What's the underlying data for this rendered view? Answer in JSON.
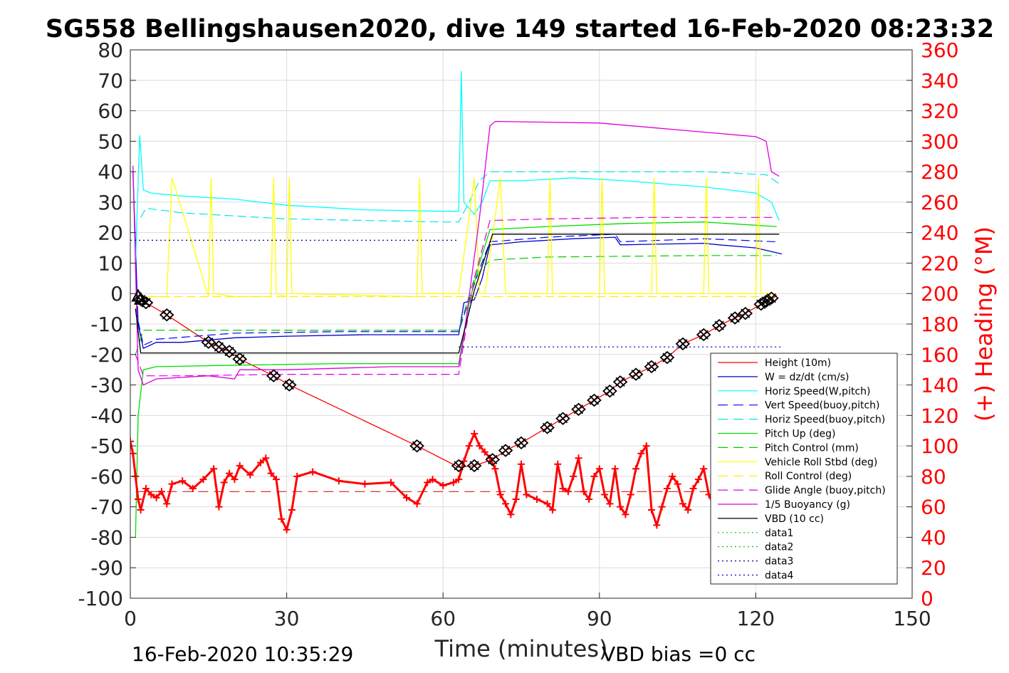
{
  "title": "SG558 Bellingshausen2020, dive 149 started 16-Feb-2020 08:23:32",
  "footer": {
    "timestamp": "16-Feb-2020 10:35:29",
    "vbd_bias": "VBD bias =0 cc"
  },
  "chart_data": {
    "type": "line",
    "title": "SG558 Bellingshausen2020, dive 149 started 16-Feb-2020 08:23:32",
    "xlabel": "Time (minutes)",
    "ylabel_left": "",
    "ylabel_right": "(+) Heading (°M)",
    "xlim": [
      0,
      150
    ],
    "ylim_left": [
      -100,
      80
    ],
    "ylim_right": [
      0,
      360
    ],
    "x_ticks": [
      "0",
      "30",
      "60",
      "90",
      "120",
      "150"
    ],
    "left_ticks": [
      "80",
      "70",
      "60",
      "50",
      "40",
      "30",
      "20",
      "10",
      "0",
      "-10",
      "-20",
      "-30",
      "-40",
      "-50",
      "-60",
      "-70",
      "-80",
      "-90",
      "-100"
    ],
    "right_ticks": [
      "360",
      "340",
      "320",
      "300",
      "280",
      "260",
      "240",
      "220",
      "200",
      "180",
      "160",
      "140",
      "120",
      "100",
      "80",
      "60",
      "40",
      "20",
      "0"
    ],
    "grid": true,
    "legend_location": "lower-right",
    "series": [
      {
        "name": "Height (10m)",
        "color": "#ff0000",
        "style": "solid",
        "x": [
          1.5,
          3,
          7,
          15,
          17,
          19,
          21,
          27.5,
          30.5,
          55,
          63,
          66,
          69.5,
          72,
          75,
          80,
          83,
          86,
          89,
          92,
          94,
          97,
          100,
          103,
          106,
          110,
          113,
          116,
          118,
          121,
          123,
          124
        ],
        "y": [
          -1.5,
          -3,
          -7,
          -16,
          -17.5,
          -19,
          -21.5,
          -27,
          -30,
          -50,
          -57,
          -56.5,
          -54.5,
          -51.5,
          -49,
          -44,
          -41,
          -38,
          -35,
          -32,
          -29,
          -26.5,
          -24,
          -21,
          -16.5,
          -13.5,
          -10.5,
          -8,
          -6.5,
          -3.5,
          -2,
          -0.5
        ]
      },
      {
        "name": "W = dz/dt (cm/s)",
        "color": "#0000cd",
        "style": "solid",
        "x": [
          0.5,
          1.5,
          2.5,
          5,
          10,
          20,
          30,
          45,
          60,
          63,
          64,
          66,
          67.5,
          69,
          75,
          85,
          93,
          94,
          110,
          113,
          120,
          125
        ],
        "y": [
          40,
          -10,
          -18,
          -16,
          -16,
          -14.5,
          -14,
          -13.5,
          -13.5,
          -13.5,
          -3,
          -2,
          5,
          16,
          17,
          18,
          18.5,
          16,
          16.5,
          16,
          15,
          13
        ]
      },
      {
        "name": "Horiz Speed(W,pitch)",
        "color": "#00ffff",
        "style": "solid",
        "x": [
          1,
          1.8,
          2.5,
          4,
          10,
          20,
          30,
          45,
          60,
          63,
          63.5,
          64,
          66,
          67.5,
          69,
          75,
          85,
          95,
          110,
          120,
          123,
          124.5
        ],
        "y": [
          10,
          52,
          34,
          33,
          32,
          31,
          29,
          27.5,
          27,
          27,
          73,
          30,
          26,
          30,
          37,
          37,
          38,
          37,
          35,
          33,
          30,
          24
        ]
      },
      {
        "name": "Vert Speed(buoy,pitch)",
        "color": "#0000ff",
        "style": "dashed",
        "x": [
          1,
          2.5,
          5,
          20,
          40,
          60,
          63,
          65,
          67,
          69,
          80,
          93,
          94,
          110,
          124
        ],
        "y": [
          -5,
          -17,
          -15,
          -13,
          -12.5,
          -12.5,
          -12.5,
          -2,
          8,
          17,
          18.5,
          19.5,
          17,
          18,
          17
        ]
      },
      {
        "name": "Horiz Speed(buoy,pitch)",
        "color": "#00e5ee",
        "style": "dashed",
        "x": [
          2,
          3,
          10,
          30,
          60,
          63,
          65,
          67,
          69,
          80,
          95,
          110,
          122,
          124.5
        ],
        "y": [
          25,
          28,
          26.5,
          24.5,
          23.5,
          23.5,
          30,
          37,
          40,
          40,
          40,
          40,
          39,
          36
        ]
      },
      {
        "name": "Pitch Up (deg)",
        "color": "#00dd00",
        "style": "solid",
        "x": [
          1,
          1.5,
          2.5,
          5,
          20,
          40,
          60,
          63,
          65,
          67,
          69,
          80,
          95,
          110,
          124
        ],
        "y": [
          -80,
          -40,
          -25,
          -24,
          -23.5,
          -23,
          -23,
          -23,
          -3,
          10,
          21,
          22,
          23,
          23.5,
          22
        ]
      },
      {
        "name": "Pitch Control (mm)",
        "color": "#00cc00",
        "style": "dashed",
        "x": [
          1,
          2.5,
          10,
          30,
          60,
          63,
          66,
          69,
          80,
          110,
          124
        ],
        "y": [
          -20,
          -12,
          -12,
          -12,
          -12,
          -12,
          5,
          11,
          12,
          12.5,
          12.5
        ]
      },
      {
        "name": "Vehicle Roll Stbd (deg)",
        "color": "#ffff00",
        "style": "solid",
        "x": [
          1,
          2,
          4,
          7,
          8,
          15,
          15.5,
          16,
          20,
          27,
          27.5,
          28,
          30,
          30.5,
          31,
          55,
          55.5,
          56,
          63,
          66,
          67,
          68,
          71,
          72,
          80,
          80.5,
          81,
          90,
          90.5,
          91,
          100,
          100.5,
          101,
          110,
          110.5,
          111,
          120,
          120.5,
          121,
          124
        ],
        "y": [
          -5,
          -2,
          -1,
          -1,
          38,
          -1,
          38,
          0,
          -1,
          -1,
          38,
          0,
          -1,
          38,
          0,
          -1,
          38,
          0,
          0,
          38,
          0,
          0,
          38,
          0,
          0,
          38,
          0,
          0,
          38,
          0,
          0,
          38,
          0,
          0,
          38,
          0,
          0,
          38,
          0,
          0
        ]
      },
      {
        "name": "Roll Control (deg)",
        "color": "#ffee00",
        "style": "dashed",
        "x": [
          1,
          5,
          30,
          60,
          63,
          68,
          80,
          100,
          124
        ],
        "y": [
          -1,
          -1,
          -1,
          -1,
          -1,
          -1,
          -1,
          -1,
          -1
        ]
      },
      {
        "name": "Glide Angle (buoy,pitch)",
        "color": "#dd00dd",
        "style": "dashed",
        "x": [
          1,
          2.5,
          10,
          30,
          60,
          63,
          66,
          69,
          80,
          100,
          124
        ],
        "y": [
          -20,
          -27,
          -27,
          -26.5,
          -26.5,
          -26.5,
          5,
          24,
          24.5,
          25,
          25
        ]
      },
      {
        "name": "1/5 Buoyancy (g)",
        "color": "#dd00dd",
        "style": "solid",
        "x": [
          0.5,
          1.5,
          2.5,
          5,
          15,
          20,
          21,
          30,
          50,
          60,
          63,
          64,
          67,
          69,
          70,
          90,
          110,
          120,
          122,
          123,
          124.5
        ],
        "y": [
          42,
          -25,
          -30,
          -28,
          -27,
          -28,
          -25,
          -25,
          -24,
          -24,
          -24,
          -14,
          25,
          55,
          56.5,
          56,
          53,
          51.5,
          50,
          40,
          38.5
        ]
      },
      {
        "name": "VBD (10 cc)",
        "color": "#000000",
        "style": "solid",
        "x": [
          1,
          2,
          3,
          20,
          40,
          60,
          63,
          66,
          69.5,
          80,
          100,
          124.5
        ],
        "y": [
          -5,
          -19.5,
          -19.5,
          -19.5,
          -19.5,
          -19.5,
          -19.5,
          1,
          19.5,
          19.5,
          19.5,
          19.5
        ]
      },
      {
        "name": "data1",
        "color": "#00cc00",
        "style": "dotted",
        "x": [],
        "y": []
      },
      {
        "name": "data2",
        "color": "#00aa00",
        "style": "dotted",
        "x": [],
        "y": []
      },
      {
        "name": "data3",
        "color": "#000088",
        "style": "dotted",
        "x": [
          0,
          63
        ],
        "y": [
          17.5,
          17.5
        ]
      },
      {
        "name": "data4",
        "color": "#0000cc",
        "style": "dotted",
        "x": [
          63,
          125
        ],
        "y": [
          -17.5,
          -17.5
        ]
      }
    ],
    "heading_series": {
      "name": "Heading",
      "axis": "right",
      "color": "#ff0000",
      "marker": "+",
      "x": [
        0,
        0.5,
        1,
        1.5,
        2,
        3,
        4,
        5,
        6,
        7,
        8,
        10,
        12,
        14,
        16,
        17,
        18,
        19,
        20,
        21,
        23,
        25,
        26,
        27,
        28,
        29,
        30,
        31,
        32,
        35,
        40,
        45,
        50,
        53,
        55,
        57,
        58,
        60,
        62,
        63,
        64,
        65,
        66,
        67,
        68,
        69,
        70,
        71,
        72,
        73,
        74,
        75,
        76,
        78,
        80,
        81,
        82,
        83,
        84,
        85,
        86,
        87,
        88,
        89,
        90,
        91,
        92,
        93,
        94,
        95,
        96,
        97,
        98,
        99,
        100,
        101,
        102,
        103,
        104,
        105,
        106,
        107,
        108,
        109,
        110,
        111,
        112,
        113,
        114,
        115,
        116,
        117,
        118,
        119,
        120,
        121,
        122,
        123,
        124
      ],
      "y": [
        103,
        95,
        80,
        65,
        58,
        72,
        68,
        66,
        70,
        62,
        75,
        77,
        72,
        78,
        85,
        60,
        76,
        82,
        78,
        87,
        81,
        89,
        92,
        82,
        78,
        52,
        45,
        58,
        80,
        83,
        77,
        75,
        76,
        66,
        62,
        76,
        78,
        74,
        76,
        78,
        90,
        100,
        108,
        100,
        96,
        92,
        85,
        68,
        62,
        55,
        65,
        88,
        68,
        65,
        62,
        58,
        88,
        72,
        70,
        80,
        92,
        70,
        65,
        80,
        85,
        68,
        62,
        85,
        60,
        55,
        68,
        85,
        95,
        100,
        58,
        48,
        60,
        72,
        80,
        75,
        62,
        58,
        72,
        78,
        85,
        68,
        60,
        88,
        76,
        70,
        82,
        85,
        90,
        80,
        72,
        68,
        75,
        85,
        90
      ]
    },
    "legend_entries": [
      {
        "label": "Height (10m)",
        "color": "#ff0000",
        "style": "solid"
      },
      {
        "label": "W = dz/dt (cm/s)",
        "color": "#0000cd",
        "style": "solid"
      },
      {
        "label": "Horiz Speed(W,pitch)",
        "color": "#00ffff",
        "style": "solid"
      },
      {
        "label": "Vert Speed(buoy,pitch)",
        "color": "#0000ff",
        "style": "dashed"
      },
      {
        "label": "Horiz Speed(buoy,pitch)",
        "color": "#00e5ee",
        "style": "dashed"
      },
      {
        "label": "Pitch Up (deg)",
        "color": "#00dd00",
        "style": "solid"
      },
      {
        "label": "Pitch Control (mm)",
        "color": "#00cc00",
        "style": "dashed"
      },
      {
        "label": "Vehicle Roll Stbd (deg)",
        "color": "#ffff00",
        "style": "solid"
      },
      {
        "label": "Roll Control (deg)",
        "color": "#ffee00",
        "style": "dashed"
      },
      {
        "label": "Glide Angle (buoy,pitch)",
        "color": "#dd00dd",
        "style": "dashed"
      },
      {
        "label": "1/5 Buoyancy (g)",
        "color": "#dd00dd",
        "style": "solid"
      },
      {
        "label": "VBD (10 cc)",
        "color": "#000000",
        "style": "solid"
      },
      {
        "label": "data1",
        "color": "#00cc00",
        "style": "dotted"
      },
      {
        "label": "data2",
        "color": "#00aa00",
        "style": "dotted"
      },
      {
        "label": "data3",
        "color": "#000088",
        "style": "dotted"
      },
      {
        "label": "data4",
        "color": "#0000cc",
        "style": "dotted"
      }
    ],
    "markers": {
      "diamond_x": [
        2,
        3,
        7,
        15,
        17,
        19,
        21,
        27.5,
        30.5,
        55,
        63,
        66,
        69.5,
        72,
        75,
        80,
        83,
        86,
        89,
        92,
        94,
        97,
        100,
        103,
        106,
        110,
        113,
        116,
        118,
        121,
        122,
        123
      ],
      "diamond_y": [
        -2,
        -3,
        -7,
        -16,
        -17.5,
        -19,
        -21.5,
        -27,
        -30,
        -50,
        -56.5,
        -56.5,
        -54.5,
        -51.5,
        -49,
        -44,
        -41,
        -38,
        -35,
        -32,
        -29,
        -26.5,
        -24,
        -21,
        -16.5,
        -13.5,
        -10.5,
        -8,
        -6.5,
        -3.5,
        -2.5,
        -1.5
      ],
      "triangle_x": [
        1.5,
        2
      ],
      "triangle_y": [
        -1,
        -2
      ]
    },
    "reference_line": {
      "y": -65,
      "color": "#cc0000",
      "style": "dashed",
      "x": [
        1,
        124
      ]
    }
  }
}
